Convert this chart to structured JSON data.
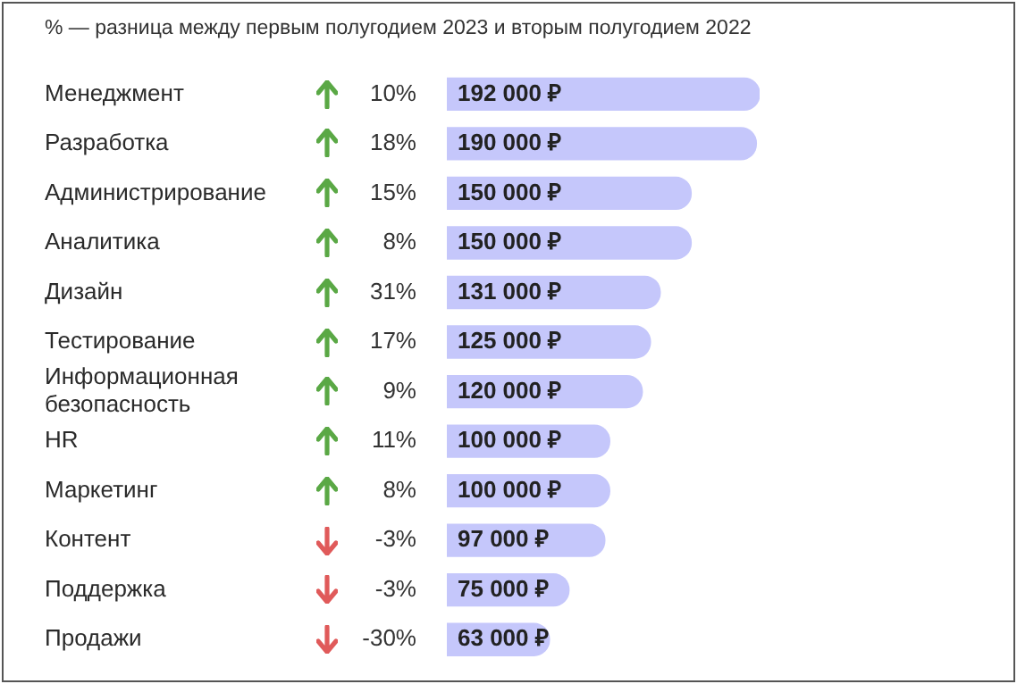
{
  "chart_data": {
    "type": "bar",
    "orientation": "horizontal",
    "title": "% — разница между первым полугодием 2023 и вторым полугодием 2022",
    "categories": [
      "Менеджмент",
      "Разработка",
      "Администрирование",
      "Аналитика",
      "Дизайн",
      "Тестирование",
      "Информационная безопасность",
      "HR",
      "Маркетинг",
      "Контент",
      "Поддержка",
      "Продажи"
    ],
    "series": [
      {
        "color": "#c5c7fb",
        "values": [
          192000,
          190000,
          150000,
          150000,
          131000,
          125000,
          120000,
          100000,
          100000,
          97000,
          75000,
          63000
        ],
        "value_labels": [
          "192 000 ₽",
          "190 000 ₽",
          "150 000 ₽",
          "150 000 ₽",
          "131 000 ₽",
          "125 000 ₽",
          "120 000 ₽",
          "100 000 ₽",
          "100 000 ₽",
          "97 000 ₽",
          "75 000 ₽",
          "63 000 ₽"
        ]
      }
    ],
    "xlim": [
      0,
      192000
    ],
    "tick_labels": "y",
    "legend": false,
    "annotations": [
      "10%",
      "18%",
      "15%",
      "8%",
      "31%",
      "17%",
      "9%",
      "11%",
      "8%",
      "-3%",
      "-3%",
      "-30%"
    ]
  }
}
